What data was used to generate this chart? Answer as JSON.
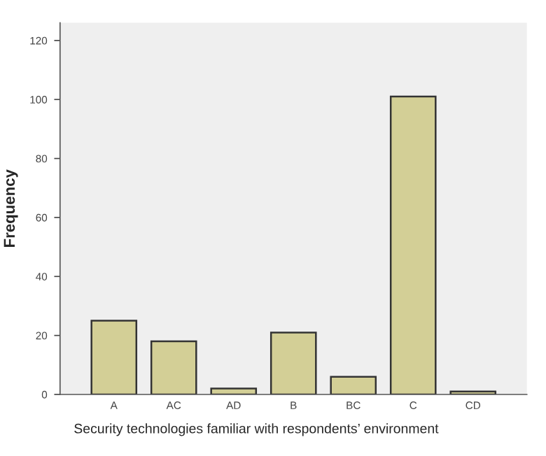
{
  "chart_data": {
    "type": "bar",
    "xlabel": "Security technologies familiar with respondents’ environment",
    "ylabel": "Frequency",
    "categories": [
      "A",
      "AC",
      "AD",
      "B",
      "BC",
      "C",
      "CD"
    ],
    "values": [
      25,
      18,
      2,
      21,
      6,
      101,
      1
    ],
    "color": "#d3cf96",
    "ylim": [
      0,
      126
    ],
    "yticks": [
      0,
      20,
      40,
      60,
      80,
      100,
      120
    ],
    "grid": false,
    "legend": false
  }
}
